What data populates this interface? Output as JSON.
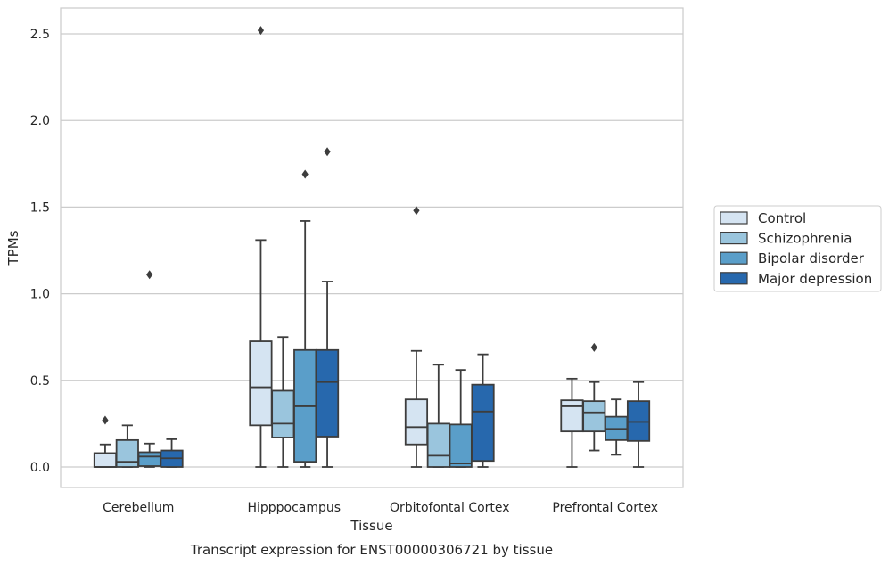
{
  "chart_data": {
    "type": "boxplot",
    "caption": "Transcript expression for ENST00000306721 by tissue",
    "xlabel": "Tissue",
    "ylabel": "TPMs",
    "ylim": [
      -0.12,
      2.65
    ],
    "yticks": [
      "0.0",
      "0.5",
      "1.0",
      "1.5",
      "2.0",
      "2.5"
    ],
    "ytick_values": [
      0,
      0.5,
      1.0,
      1.5,
      2.0,
      2.5
    ],
    "grid": "horizontal",
    "legend_position": "right",
    "categories": [
      "Cerebellum",
      "Hipppocampus",
      "Orbitofontal Cortex",
      "Prefrontal Cortex"
    ],
    "series": [
      {
        "name": "Control",
        "color": "#d5e4f2",
        "boxes": [
          {
            "whisker_low": 0.0,
            "q1": 0.0,
            "median": 0.0,
            "q3": 0.08,
            "whisker_high": 0.13,
            "outliers": [
              0.27
            ]
          },
          {
            "whisker_low": 0.0,
            "q1": 0.24,
            "median": 0.46,
            "q3": 0.725,
            "whisker_high": 1.31,
            "outliers": [
              2.52
            ]
          },
          {
            "whisker_low": 0.0,
            "q1": 0.13,
            "median": 0.23,
            "q3": 0.39,
            "whisker_high": 0.67,
            "outliers": [
              1.48
            ]
          },
          {
            "whisker_low": 0.0,
            "q1": 0.205,
            "median": 0.35,
            "q3": 0.385,
            "whisker_high": 0.51,
            "outliers": []
          }
        ]
      },
      {
        "name": "Schizophrenia",
        "color": "#9ac5dd",
        "boxes": [
          {
            "whisker_low": 0.0,
            "q1": 0.0,
            "median": 0.03,
            "q3": 0.155,
            "whisker_high": 0.24,
            "outliers": []
          },
          {
            "whisker_low": 0.0,
            "q1": 0.17,
            "median": 0.25,
            "q3": 0.44,
            "whisker_high": 0.75,
            "outliers": []
          },
          {
            "whisker_low": 0.0,
            "q1": 0.0,
            "median": 0.065,
            "q3": 0.25,
            "whisker_high": 0.59,
            "outliers": []
          },
          {
            "whisker_low": 0.095,
            "q1": 0.205,
            "median": 0.315,
            "q3": 0.38,
            "whisker_high": 0.49,
            "outliers": [
              0.69
            ]
          }
        ]
      },
      {
        "name": "Bipolar disorder",
        "color": "#5a9ec9",
        "boxes": [
          {
            "whisker_low": 0.0,
            "q1": 0.005,
            "median": 0.06,
            "q3": 0.085,
            "whisker_high": 0.135,
            "outliers": [
              1.11
            ]
          },
          {
            "whisker_low": 0.0,
            "q1": 0.03,
            "median": 0.35,
            "q3": 0.675,
            "whisker_high": 1.42,
            "outliers": [
              1.69
            ]
          },
          {
            "whisker_low": 0.0,
            "q1": 0.0,
            "median": 0.02,
            "q3": 0.245,
            "whisker_high": 0.56,
            "outliers": []
          },
          {
            "whisker_low": 0.07,
            "q1": 0.155,
            "median": 0.22,
            "q3": 0.29,
            "whisker_high": 0.39,
            "outliers": []
          }
        ]
      },
      {
        "name": "Major depression",
        "color": "#2768ad",
        "boxes": [
          {
            "whisker_low": 0.0,
            "q1": 0.0,
            "median": 0.05,
            "q3": 0.095,
            "whisker_high": 0.16,
            "outliers": []
          },
          {
            "whisker_low": 0.0,
            "q1": 0.175,
            "median": 0.49,
            "q3": 0.675,
            "whisker_high": 1.07,
            "outliers": [
              1.82
            ]
          },
          {
            "whisker_low": 0.0,
            "q1": 0.035,
            "median": 0.32,
            "q3": 0.475,
            "whisker_high": 0.65,
            "outliers": []
          },
          {
            "whisker_low": 0.0,
            "q1": 0.15,
            "median": 0.26,
            "q3": 0.38,
            "whisker_high": 0.49,
            "outliers": []
          }
        ]
      }
    ]
  }
}
